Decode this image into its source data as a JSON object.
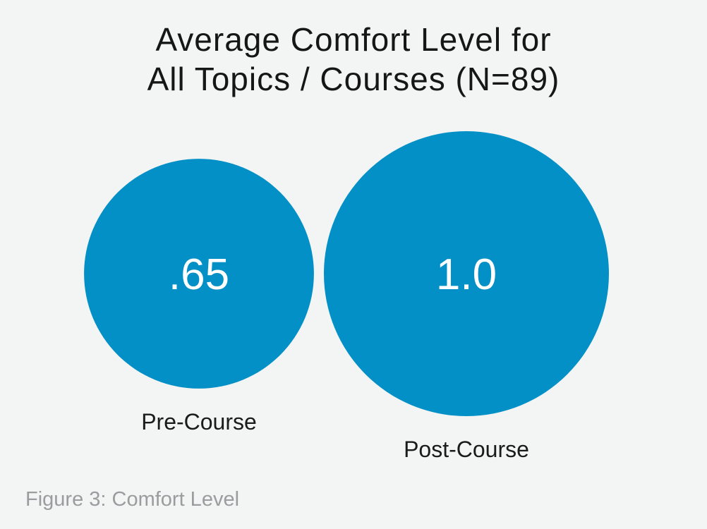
{
  "chart_data": {
    "type": "bubble",
    "title_lines": [
      "Average Comfort Level for",
      "All Topics / Courses (N=89)"
    ],
    "categories": [
      "Pre-Course",
      "Post-Course"
    ],
    "values": [
      0.65,
      1.0
    ],
    "value_labels": [
      ".65",
      "1.0"
    ],
    "color": "#0390c6"
  },
  "caption": "Figure 3: Comfort Level"
}
